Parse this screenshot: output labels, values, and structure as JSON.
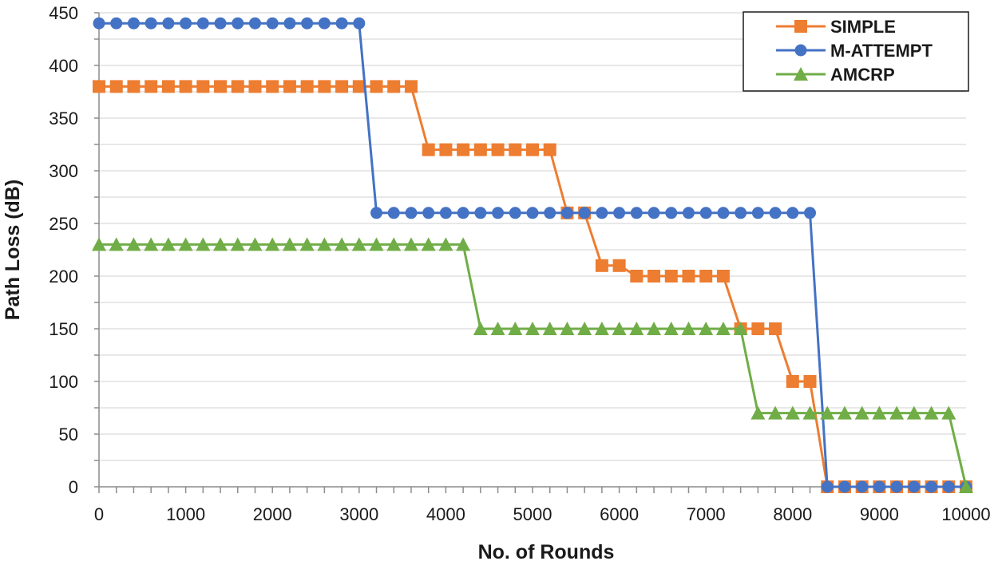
{
  "chart_data": {
    "type": "line",
    "title": "",
    "xlabel": "No. of Rounds",
    "ylabel": "Path Loss (dB)",
    "xlim": [
      0,
      10000
    ],
    "ylim": [
      0,
      450
    ],
    "x_ticks": [
      "0",
      "1000",
      "2000",
      "3000",
      "4000",
      "5000",
      "6000",
      "7000",
      "8000",
      "9000",
      "10000"
    ],
    "y_ticks": [
      "0",
      "50",
      "100",
      "150",
      "200",
      "250",
      "300",
      "350",
      "400",
      "450"
    ],
    "grid": true,
    "legend_position": "top-right",
    "series": [
      {
        "name": "SIMPLE",
        "color": "#ED7D31",
        "marker": "square",
        "x": [
          0,
          200,
          400,
          600,
          800,
          1000,
          1200,
          1400,
          1600,
          1800,
          2000,
          2200,
          2400,
          2600,
          2800,
          3000,
          3200,
          3400,
          3600,
          3800,
          4000,
          4200,
          4400,
          4600,
          4800,
          5000,
          5200,
          5400,
          5600,
          5800,
          6000,
          6200,
          6400,
          6600,
          6800,
          7000,
          7200,
          7400,
          7600,
          7800,
          8000,
          8200,
          8400,
          8600,
          8800,
          9000,
          9200,
          9400,
          9600,
          9800,
          10000
        ],
        "y": [
          380,
          380,
          380,
          380,
          380,
          380,
          380,
          380,
          380,
          380,
          380,
          380,
          380,
          380,
          380,
          380,
          380,
          380,
          380,
          320,
          320,
          320,
          320,
          320,
          320,
          320,
          320,
          260,
          260,
          210,
          210,
          200,
          200,
          200,
          200,
          200,
          200,
          150,
          150,
          150,
          100,
          100,
          0,
          0,
          0,
          0,
          0,
          0,
          0,
          0,
          0
        ]
      },
      {
        "name": "M-ATTEMPT",
        "color": "#4472C4",
        "marker": "circle",
        "x": [
          0,
          200,
          400,
          600,
          800,
          1000,
          1200,
          1400,
          1600,
          1800,
          2000,
          2200,
          2400,
          2600,
          2800,
          3000,
          3200,
          3400,
          3600,
          3800,
          4000,
          4200,
          4400,
          4600,
          4800,
          5000,
          5200,
          5400,
          5600,
          5800,
          6000,
          6200,
          6400,
          6600,
          6800,
          7000,
          7200,
          7400,
          7600,
          7800,
          8000,
          8200,
          8400,
          8600,
          8800,
          9000,
          9200,
          9400,
          9600,
          9800,
          10000
        ],
        "y": [
          440,
          440,
          440,
          440,
          440,
          440,
          440,
          440,
          440,
          440,
          440,
          440,
          440,
          440,
          440,
          440,
          260,
          260,
          260,
          260,
          260,
          260,
          260,
          260,
          260,
          260,
          260,
          260,
          260,
          260,
          260,
          260,
          260,
          260,
          260,
          260,
          260,
          260,
          260,
          260,
          260,
          260,
          0,
          0,
          0,
          0,
          0,
          0,
          0,
          0,
          0
        ]
      },
      {
        "name": "AMCRP",
        "color": "#70AD47",
        "marker": "triangle",
        "x": [
          0,
          200,
          400,
          600,
          800,
          1000,
          1200,
          1400,
          1600,
          1800,
          2000,
          2200,
          2400,
          2600,
          2800,
          3000,
          3200,
          3400,
          3600,
          3800,
          4000,
          4200,
          4400,
          4600,
          4800,
          5000,
          5200,
          5400,
          5600,
          5800,
          6000,
          6200,
          6400,
          6600,
          6800,
          7000,
          7200,
          7400,
          7600,
          7800,
          8000,
          8200,
          8400,
          8600,
          8800,
          9000,
          9200,
          9400,
          9600,
          9800,
          10000
        ],
        "y": [
          230,
          230,
          230,
          230,
          230,
          230,
          230,
          230,
          230,
          230,
          230,
          230,
          230,
          230,
          230,
          230,
          230,
          230,
          230,
          230,
          230,
          230,
          150,
          150,
          150,
          150,
          150,
          150,
          150,
          150,
          150,
          150,
          150,
          150,
          150,
          150,
          150,
          150,
          70,
          70,
          70,
          70,
          70,
          70,
          70,
          70,
          70,
          70,
          70,
          70,
          0
        ]
      }
    ]
  }
}
